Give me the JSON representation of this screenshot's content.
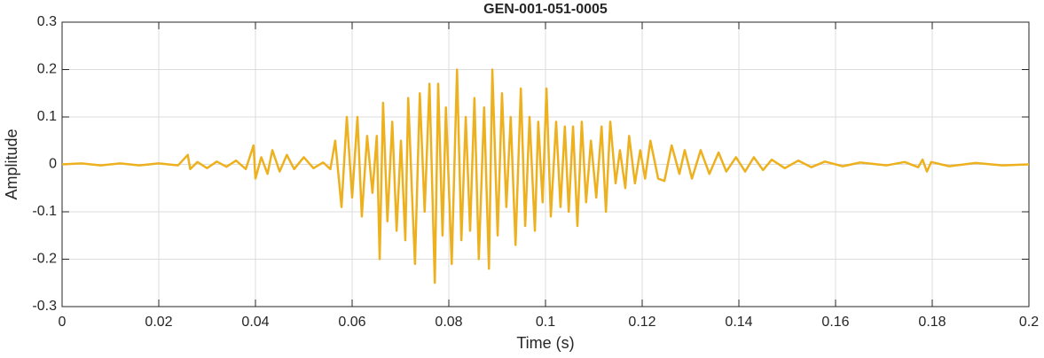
{
  "chart_data": {
    "type": "line",
    "title": "GEN-001-051-0005",
    "xlabel": "Time (s)",
    "ylabel": "Amplitude",
    "color": "#EDB120",
    "grid": true,
    "xlim": [
      0,
      0.2
    ],
    "xticks": [
      0,
      0.02,
      0.04,
      0.06,
      0.08,
      0.1,
      0.12,
      0.14,
      0.16,
      0.18,
      0.2
    ],
    "ylim": [
      -0.3,
      0.3
    ],
    "yticks": [
      -0.3,
      -0.2,
      -0.1,
      0,
      0.1,
      0.2,
      0.3
    ],
    "x": [
      0,
      0.004,
      0.008,
      0.012,
      0.016,
      0.02,
      0.024,
      0.026,
      0.0265,
      0.028,
      0.03,
      0.032,
      0.034,
      0.036,
      0.038,
      0.0396,
      0.04,
      0.0412,
      0.0425,
      0.0435,
      0.045,
      0.0465,
      0.048,
      0.05,
      0.052,
      0.054,
      0.0555,
      0.0565,
      0.0578,
      0.0589,
      0.06,
      0.0611,
      0.062,
      0.0631,
      0.0642,
      0.0651,
      0.0657,
      0.0664,
      0.0673,
      0.0683,
      0.0692,
      0.0701,
      0.071,
      0.0716,
      0.0725,
      0.073,
      0.074,
      0.075,
      0.076,
      0.0771,
      0.0778,
      0.0787,
      0.0794,
      0.0806,
      0.0817,
      0.0826,
      0.0835,
      0.0844,
      0.0853,
      0.0862,
      0.0873,
      0.0883,
      0.089,
      0.0901,
      0.091,
      0.0919,
      0.0928,
      0.0938,
      0.0949,
      0.0958,
      0.0967,
      0.0978,
      0.0985,
      0.0994,
      0.1002,
      0.1011,
      0.1022,
      0.1031,
      0.104,
      0.1048,
      0.1057,
      0.1066,
      0.1075,
      0.1084,
      0.1094,
      0.1105,
      0.1116,
      0.1125,
      0.1134,
      0.1145,
      0.1154,
      0.1165,
      0.1173,
      0.1185,
      0.1196,
      0.1206,
      0.1217,
      0.1233,
      0.1246,
      0.1261,
      0.1277,
      0.1288,
      0.1303,
      0.1321,
      0.1339,
      0.1358,
      0.1374,
      0.1394,
      0.1413,
      0.1431,
      0.145,
      0.1468,
      0.1495,
      0.1523,
      0.155,
      0.1578,
      0.1615,
      0.1651,
      0.1706,
      0.1743,
      0.1771,
      0.178,
      0.1789,
      0.1798,
      0.1835,
      0.189,
      0.1945,
      0.2
    ],
    "values": [
      0,
      0.002,
      -0.002,
      0.002,
      -0.002,
      0.002,
      -0.002,
      0.02,
      -0.01,
      0.005,
      -0.008,
      0.006,
      -0.005,
      0.008,
      -0.01,
      0.04,
      -0.03,
      0.015,
      -0.02,
      0.03,
      -0.015,
      0.02,
      -0.01,
      0.015,
      -0.008,
      0.004,
      -0.01,
      0.05,
      -0.09,
      0.1,
      -0.07,
      0.1,
      -0.11,
      0.06,
      -0.06,
      0.06,
      -0.2,
      0.13,
      -0.12,
      0.09,
      -0.14,
      0.05,
      -0.16,
      0.14,
      -0.09,
      -0.21,
      0.15,
      -0.1,
      0.17,
      -0.25,
      0.17,
      -0.15,
      0.12,
      -0.21,
      0.2,
      -0.16,
      0.1,
      -0.14,
      0.14,
      -0.2,
      0.12,
      -0.22,
      0.2,
      -0.15,
      0.15,
      -0.09,
      0.1,
      -0.17,
      0.16,
      -0.13,
      0.1,
      -0.14,
      0.09,
      -0.08,
      0.16,
      -0.11,
      0.09,
      -0.09,
      0.08,
      -0.1,
      0.08,
      -0.13,
      0.09,
      -0.08,
      0.05,
      -0.07,
      0.08,
      -0.1,
      0.09,
      -0.04,
      0.03,
      -0.05,
      0.06,
      -0.04,
      0.03,
      -0.03,
      0.05,
      -0.03,
      -0.035,
      0.04,
      -0.02,
      0.03,
      -0.03,
      0.03,
      -0.02,
      0.025,
      -0.015,
      0.015,
      -0.015,
      0.015,
      -0.012,
      0.01,
      -0.008,
      0.008,
      -0.006,
      0.006,
      -0.004,
      0.004,
      -0.002,
      0.005,
      -0.006,
      0.01,
      -0.015,
      0.005,
      -0.004,
      0.003,
      -0.002,
      0
    ]
  }
}
